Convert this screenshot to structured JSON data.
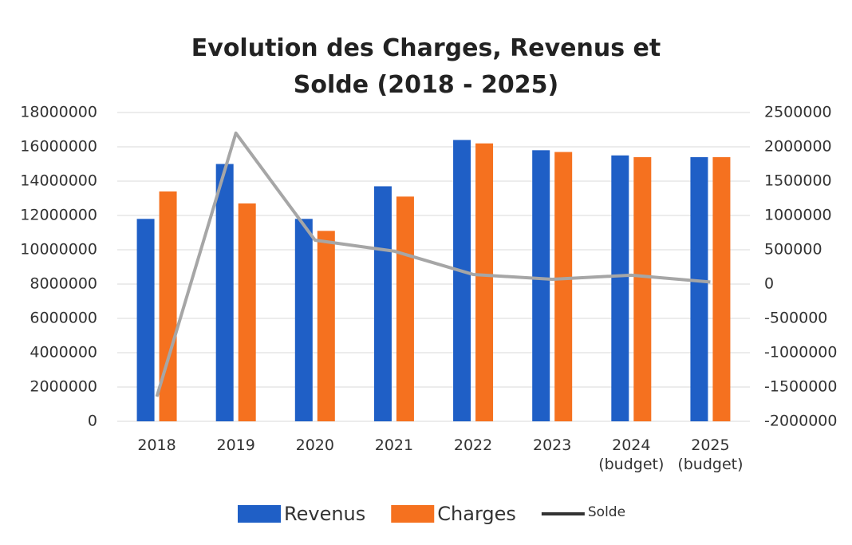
{
  "chart_data": {
    "type": "bar",
    "title": "Evolution des Charges, Revenus et Solde (2018 - 2025)",
    "categories": [
      "2018",
      "2019",
      "2020",
      "2021",
      "2022",
      "2023",
      "2024 (budget)",
      "2025 (budget)"
    ],
    "series": [
      {
        "name": "Revenus",
        "color": "#1f5fc6",
        "type": "bar",
        "values": [
          11800000,
          15000000,
          11800000,
          13700000,
          16400000,
          15800000,
          15500000,
          15400000
        ]
      },
      {
        "name": "Charges",
        "color": "#f5711f",
        "type": "bar",
        "values": [
          13400000,
          12700000,
          11100000,
          13100000,
          16200000,
          15700000,
          15400000,
          15400000
        ]
      },
      {
        "name": "Solde",
        "color": "#a6a6a6",
        "type": "line",
        "axis": "y2",
        "values": [
          -1640000,
          2200000,
          640000,
          480000,
          140000,
          70000,
          130000,
          30000
        ]
      }
    ],
    "ylim": [
      0,
      18000000
    ],
    "yticks": [
      0,
      2000000,
      4000000,
      6000000,
      8000000,
      10000000,
      12000000,
      14000000,
      16000000,
      18000000
    ],
    "y2lim": [
      -2000000,
      2500000
    ],
    "y2ticks": [
      -2000000,
      -1500000,
      -1000000,
      -500000,
      0,
      500000,
      1000000,
      1500000,
      2000000,
      2500000
    ],
    "grid": true,
    "legend": "bottom"
  }
}
